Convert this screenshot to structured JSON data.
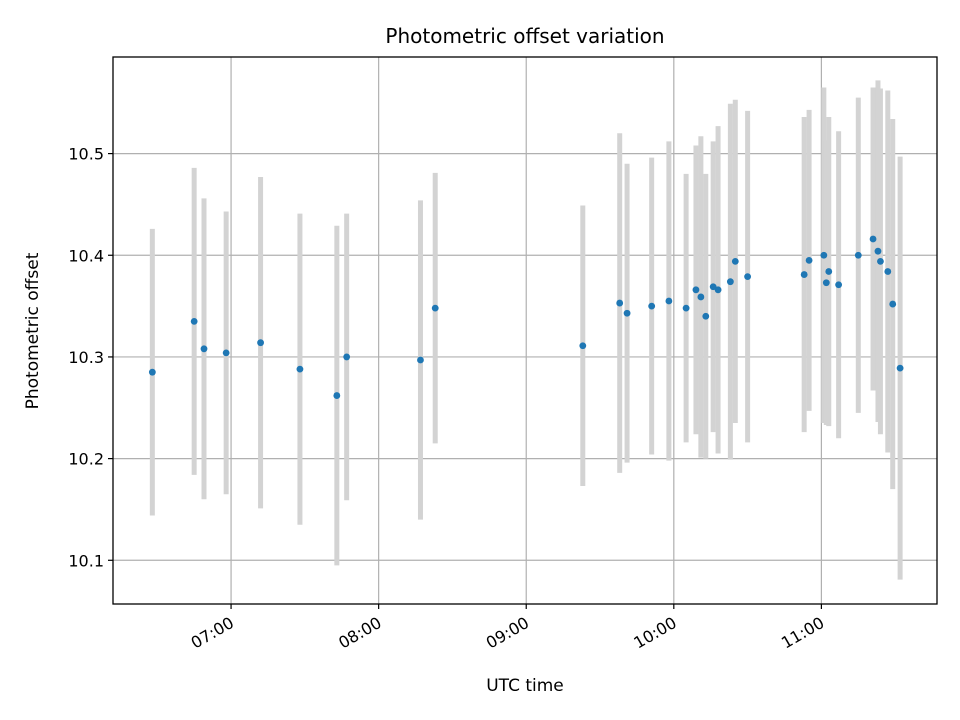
{
  "chart_data": {
    "type": "scatter",
    "title": "Photometric offset variation",
    "xlabel": "UTC time",
    "ylabel": "Photometric offset",
    "x_is_time": true,
    "xlim": [
      "06:12",
      "11:47"
    ],
    "ylim": [
      10.057,
      10.595
    ],
    "xticks": [
      "07:00",
      "08:00",
      "09:00",
      "10:00",
      "11:00"
    ],
    "yticks": [
      10.1,
      10.2,
      10.3,
      10.4,
      10.5
    ],
    "grid": true,
    "point_color": "#1f77b4",
    "errorbar_color": "#d3d3d3",
    "points": [
      {
        "t": "06:28",
        "y": 10.285,
        "err": 0.141
      },
      {
        "t": "06:45",
        "y": 10.335,
        "err": 0.151
      },
      {
        "t": "06:49",
        "y": 10.308,
        "err": 0.148
      },
      {
        "t": "06:58",
        "y": 10.304,
        "err": 0.139
      },
      {
        "t": "07:12",
        "y": 10.314,
        "err": 0.163
      },
      {
        "t": "07:28",
        "y": 10.288,
        "err": 0.153
      },
      {
        "t": "07:43",
        "y": 10.262,
        "err": 0.167
      },
      {
        "t": "07:47",
        "y": 10.3,
        "err": 0.141
      },
      {
        "t": "08:17",
        "y": 10.297,
        "err": 0.157
      },
      {
        "t": "08:23",
        "y": 10.348,
        "err": 0.133
      },
      {
        "t": "09:23",
        "y": 10.311,
        "err": 0.138
      },
      {
        "t": "09:38",
        "y": 10.353,
        "err": 0.167
      },
      {
        "t": "09:41",
        "y": 10.343,
        "err": 0.147
      },
      {
        "t": "09:51",
        "y": 10.35,
        "err": 0.146
      },
      {
        "t": "09:58",
        "y": 10.355,
        "err": 0.157
      },
      {
        "t": "10:05",
        "y": 10.348,
        "err": 0.132
      },
      {
        "t": "10:09",
        "y": 10.366,
        "err": 0.142
      },
      {
        "t": "10:11",
        "y": 10.359,
        "err": 0.158
      },
      {
        "t": "10:13",
        "y": 10.34,
        "err": 0.14
      },
      {
        "t": "10:16",
        "y": 10.369,
        "err": 0.143
      },
      {
        "t": "10:18",
        "y": 10.366,
        "err": 0.161
      },
      {
        "t": "10:23",
        "y": 10.374,
        "err": 0.175
      },
      {
        "t": "10:25",
        "y": 10.394,
        "err": 0.159
      },
      {
        "t": "10:30",
        "y": 10.379,
        "err": 0.163
      },
      {
        "t": "10:53",
        "y": 10.381,
        "err": 0.155
      },
      {
        "t": "10:55",
        "y": 10.395,
        "err": 0.148
      },
      {
        "t": "11:01",
        "y": 10.4,
        "err": 0.165
      },
      {
        "t": "11:02",
        "y": 10.373,
        "err": 0.14
      },
      {
        "t": "11:03",
        "y": 10.384,
        "err": 0.152
      },
      {
        "t": "11:07",
        "y": 10.371,
        "err": 0.151
      },
      {
        "t": "11:15",
        "y": 10.4,
        "err": 0.155
      },
      {
        "t": "11:21",
        "y": 10.416,
        "err": 0.149
      },
      {
        "t": "11:23",
        "y": 10.404,
        "err": 0.168
      },
      {
        "t": "11:24",
        "y": 10.394,
        "err": 0.17
      },
      {
        "t": "11:27",
        "y": 10.384,
        "err": 0.178
      },
      {
        "t": "11:29",
        "y": 10.352,
        "err": 0.182
      },
      {
        "t": "11:32",
        "y": 10.289,
        "err": 0.208
      }
    ]
  }
}
